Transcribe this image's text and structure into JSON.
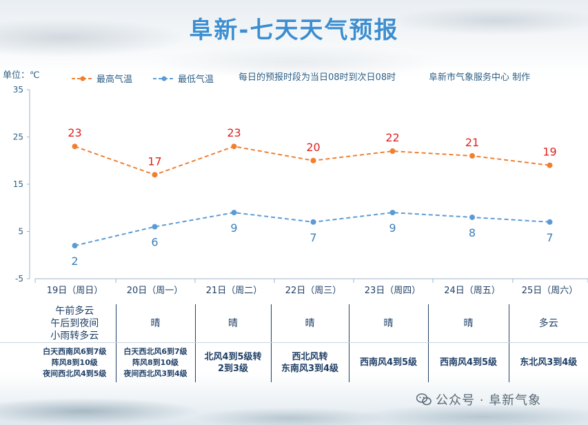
{
  "title": "阜新-七天天气预报",
  "unit_label": "单位：℃",
  "note": "每日的预报时段为当日08时到次日08时",
  "publisher": "阜新市气象服务中心 制作",
  "watermark": "公众号 · 阜新气象",
  "colors": {
    "high": "#f07f2f",
    "low": "#5b9bd5",
    "high_label": "#e0201f",
    "low_label": "#3a7fba",
    "title": "#3d8ed0"
  },
  "chart_data": {
    "type": "line",
    "categories": [
      "19日（周日）",
      "20日（周一）",
      "21日（周二）",
      "22日（周三）",
      "23日（周四）",
      "24日（周五）",
      "25日（周六）"
    ],
    "series": [
      {
        "name": "最高气温",
        "values": [
          23,
          17,
          23,
          20,
          22,
          21,
          19
        ]
      },
      {
        "name": "最低气温",
        "values": [
          2,
          6,
          9,
          7,
          9,
          8,
          7
        ]
      }
    ],
    "yticks": [
      35,
      25,
      15,
      5,
      -5
    ],
    "ylim": [
      -5,
      35
    ],
    "grid": false,
    "legend": "top-left"
  },
  "weather": [
    {
      "condition": "午前多云\n午后到夜间\n小雨转多云",
      "wind": "白天西南风6到7级\n阵风8到10级\n夜间西北风4到5级"
    },
    {
      "condition": "晴",
      "wind": "白天西北风6到7级\n阵风8到10级\n夜间西北风3到4级"
    },
    {
      "condition": "晴",
      "wind": "北风4到5级转\n2到3级"
    },
    {
      "condition": "晴",
      "wind": "西北风转\n东南风3到4级"
    },
    {
      "condition": "晴",
      "wind": "西南风4到5级"
    },
    {
      "condition": "晴",
      "wind": "西南风4到5级"
    },
    {
      "condition": "多云",
      "wind": "东北风3到4级"
    }
  ]
}
